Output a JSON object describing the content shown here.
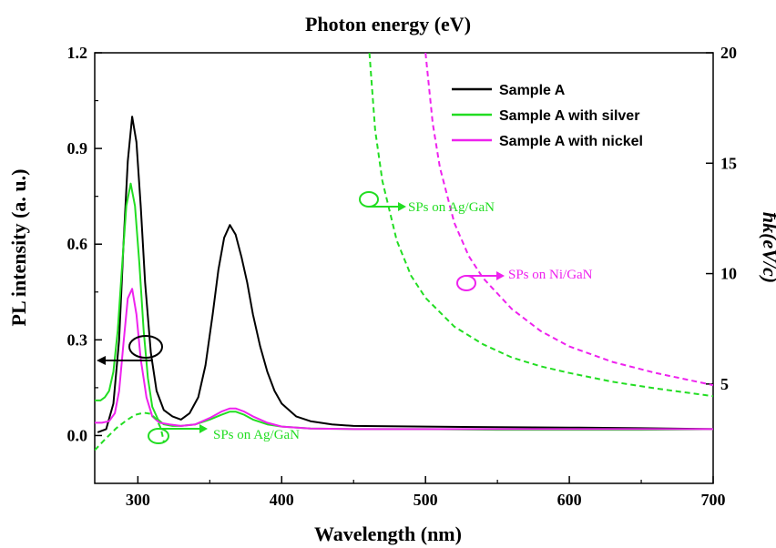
{
  "chart_data": {
    "type": "line",
    "title": "Photon energy (eV)",
    "xlabel": "Wavelength (nm)",
    "ylabel": "PL intensity (a. u.)",
    "y2label": "ħk(eV/c)",
    "xlim": [
      270,
      700
    ],
    "ylim": [
      -0.15,
      1.2
    ],
    "y2lim": [
      0.5,
      20
    ],
    "x_ticks": [
      300,
      400,
      500,
      600,
      700
    ],
    "y_ticks": [
      0.0,
      0.3,
      0.6,
      0.9,
      1.2
    ],
    "y_tick_labels": [
      "0.0",
      "0.3",
      "0.6",
      "0.9",
      "1.2"
    ],
    "y2_ticks": [
      5,
      10,
      15,
      20
    ],
    "grid": false,
    "legend_position": "top-right",
    "colors": {
      "sample_a": "#000000",
      "silver": "#22dd22",
      "nickel": "#ee22ee"
    },
    "series": [
      {
        "name": "Sample A",
        "axis": "left",
        "style": "solid",
        "color": "#000000",
        "x": [
          272,
          278,
          283,
          287,
          290,
          293,
          296,
          299,
          302,
          305,
          309,
          313,
          318,
          324,
          330,
          336,
          342,
          347,
          352,
          356,
          360,
          364,
          368,
          372,
          376,
          380,
          385,
          390,
          395,
          400,
          410,
          420,
          435,
          450,
          500,
          550,
          600,
          650,
          700
        ],
        "y": [
          0.01,
          0.02,
          0.1,
          0.3,
          0.6,
          0.86,
          1.0,
          0.92,
          0.72,
          0.48,
          0.26,
          0.14,
          0.08,
          0.06,
          0.05,
          0.07,
          0.12,
          0.22,
          0.38,
          0.52,
          0.62,
          0.66,
          0.63,
          0.56,
          0.48,
          0.38,
          0.28,
          0.2,
          0.14,
          0.1,
          0.06,
          0.045,
          0.035,
          0.03,
          0.028,
          0.026,
          0.025,
          0.023,
          0.02
        ]
      },
      {
        "name": "Sample A with silver",
        "axis": "left",
        "style": "solid",
        "color": "#22dd22",
        "x": [
          270,
          274,
          277,
          280,
          283,
          286,
          289,
          292,
          295,
          298,
          301,
          304,
          307,
          310,
          314,
          318,
          324,
          330,
          340,
          350,
          358,
          364,
          368,
          374,
          380,
          390,
          400,
          420,
          450,
          500,
          550,
          600,
          650,
          700
        ],
        "y": [
          0.11,
          0.11,
          0.12,
          0.14,
          0.2,
          0.33,
          0.53,
          0.72,
          0.79,
          0.72,
          0.54,
          0.33,
          0.18,
          0.09,
          0.05,
          0.035,
          0.03,
          0.03,
          0.035,
          0.05,
          0.065,
          0.075,
          0.075,
          0.065,
          0.05,
          0.035,
          0.028,
          0.022,
          0.02,
          0.02,
          0.018,
          0.018,
          0.018,
          0.02
        ]
      },
      {
        "name": "Sample A with nickel",
        "axis": "left",
        "style": "solid",
        "color": "#ee22ee",
        "x": [
          270,
          275,
          280,
          284,
          287,
          290,
          293,
          296,
          299,
          302,
          306,
          310,
          315,
          322,
          330,
          340,
          350,
          358,
          364,
          368,
          374,
          380,
          390,
          400,
          420,
          450,
          500,
          550,
          600,
          650,
          700
        ],
        "y": [
          0.04,
          0.04,
          0.045,
          0.07,
          0.14,
          0.29,
          0.43,
          0.46,
          0.38,
          0.24,
          0.12,
          0.06,
          0.04,
          0.035,
          0.03,
          0.035,
          0.055,
          0.075,
          0.085,
          0.085,
          0.075,
          0.06,
          0.04,
          0.028,
          0.022,
          0.02,
          0.02,
          0.02,
          0.02,
          0.02,
          0.02
        ]
      },
      {
        "name": "SPs on Ag/GaN",
        "axis": "right",
        "style": "dashed",
        "color": "#22dd22",
        "x": [
          461,
          465,
          470,
          480,
          490,
          500,
          520,
          540,
          560,
          580,
          600,
          630,
          660,
          700
        ],
        "y": [
          20,
          16.5,
          14.2,
          11.5,
          9.9,
          8.9,
          7.6,
          6.8,
          6.2,
          5.8,
          5.5,
          5.1,
          4.8,
          4.45
        ]
      },
      {
        "name": "SPs on Ni/GaN",
        "axis": "right",
        "style": "dashed",
        "color": "#ee22ee",
        "x": [
          500,
          505,
          510,
          520,
          530,
          540,
          560,
          580,
          600,
          630,
          660,
          700
        ],
        "y": [
          20,
          16.8,
          14.8,
          12.3,
          10.8,
          9.8,
          8.4,
          7.4,
          6.7,
          6.0,
          5.5,
          4.95
        ]
      },
      {
        "name": "SPs on Ag/GaN (UV)",
        "axis": "right",
        "style": "dashed",
        "color": "#22dd22",
        "x": [
          270,
          278,
          285,
          292,
          298,
          304,
          309,
          313,
          316,
          318
        ],
        "y": [
          2.0,
          2.55,
          3.0,
          3.35,
          3.6,
          3.7,
          3.65,
          3.4,
          3.0,
          2.4
        ]
      }
    ],
    "legend": [
      "Sample A",
      "Sample A with silver",
      "Sample A with nickel"
    ],
    "annotations": [
      {
        "text": "SPs on Ag/GaN",
        "color": "#22dd22",
        "x": 462,
        "y2": 13.6
      },
      {
        "text": "SPs on Ni/GaN",
        "color": "#ee22ee",
        "x": 528,
        "y2": 10.0
      },
      {
        "text": "SPs on Ag/GaN",
        "color": "#22dd22",
        "x": 318,
        "y": -0.01
      }
    ]
  }
}
